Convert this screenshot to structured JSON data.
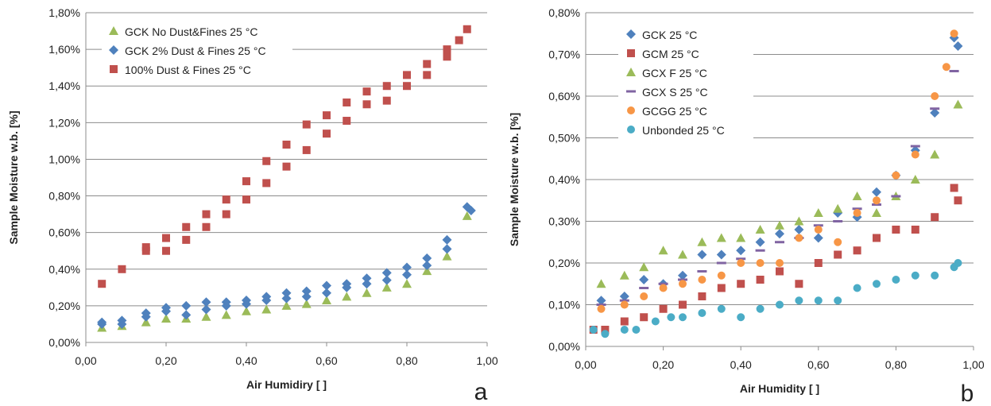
{
  "chart_data": [
    {
      "type": "scatter",
      "panel_label": "a",
      "xlabel": "Air Humidiry [ ]",
      "ylabel": "Sample Moisture w.b. [%]",
      "xlim": [
        0,
        1
      ],
      "ylim": [
        0,
        1.8
      ],
      "x_ticks": [
        "0,00",
        "0,20",
        "0,40",
        "0,60",
        "0,80",
        "1,00"
      ],
      "y_ticks": [
        "0,00%",
        "0,20%",
        "0,40%",
        "0,60%",
        "0,80%",
        "1,00%",
        "1,20%",
        "1,40%",
        "1,60%",
        "1,80%"
      ],
      "grid": "horizontal",
      "legend": "top-left",
      "series": [
        {
          "name": "GCK No Dust&Fines 25 °C",
          "marker": "triangle",
          "color": "#9bbb59",
          "x": [
            0.04,
            0.09,
            0.15,
            0.2,
            0.25,
            0.3,
            0.35,
            0.4,
            0.45,
            0.5,
            0.55,
            0.6,
            0.65,
            0.7,
            0.75,
            0.8,
            0.85,
            0.9,
            0.95
          ],
          "y": [
            0.08,
            0.09,
            0.11,
            0.13,
            0.13,
            0.14,
            0.15,
            0.17,
            0.18,
            0.2,
            0.21,
            0.23,
            0.25,
            0.27,
            0.3,
            0.32,
            0.39,
            0.47,
            0.69
          ]
        },
        {
          "name": "GCK 2% Dust & Fines 25 °C",
          "marker": "diamond",
          "color": "#4f81bd",
          "x": [
            0.04,
            0.04,
            0.09,
            0.09,
            0.15,
            0.15,
            0.2,
            0.2,
            0.25,
            0.25,
            0.3,
            0.3,
            0.35,
            0.35,
            0.4,
            0.4,
            0.45,
            0.45,
            0.5,
            0.5,
            0.55,
            0.55,
            0.6,
            0.6,
            0.65,
            0.65,
            0.7,
            0.7,
            0.75,
            0.75,
            0.8,
            0.8,
            0.85,
            0.85,
            0.9,
            0.9,
            0.95,
            0.96
          ],
          "y": [
            0.1,
            0.11,
            0.1,
            0.12,
            0.14,
            0.16,
            0.17,
            0.19,
            0.15,
            0.2,
            0.18,
            0.22,
            0.2,
            0.22,
            0.21,
            0.23,
            0.23,
            0.25,
            0.24,
            0.27,
            0.25,
            0.28,
            0.27,
            0.31,
            0.3,
            0.32,
            0.32,
            0.35,
            0.34,
            0.38,
            0.37,
            0.41,
            0.42,
            0.46,
            0.51,
            0.56,
            0.74,
            0.72
          ]
        },
        {
          "name": "100% Dust & Fines 25 °C",
          "marker": "square",
          "color": "#c0504d",
          "x": [
            0.04,
            0.09,
            0.15,
            0.15,
            0.2,
            0.2,
            0.25,
            0.25,
            0.3,
            0.3,
            0.35,
            0.35,
            0.4,
            0.4,
            0.45,
            0.45,
            0.5,
            0.5,
            0.55,
            0.55,
            0.6,
            0.6,
            0.65,
            0.65,
            0.7,
            0.7,
            0.75,
            0.75,
            0.8,
            0.8,
            0.85,
            0.85,
            0.9,
            0.9,
            0.93,
            0.95
          ],
          "y": [
            0.32,
            0.4,
            0.5,
            0.52,
            0.5,
            0.57,
            0.56,
            0.63,
            0.63,
            0.7,
            0.7,
            0.78,
            0.78,
            0.88,
            0.87,
            0.99,
            0.96,
            1.08,
            1.05,
            1.19,
            1.14,
            1.24,
            1.21,
            1.31,
            1.3,
            1.37,
            1.32,
            1.4,
            1.4,
            1.46,
            1.46,
            1.52,
            1.56,
            1.6,
            1.65,
            1.71
          ]
        }
      ]
    },
    {
      "type": "scatter",
      "panel_label": "b",
      "xlabel": "Air Humidity [ ]",
      "ylabel": "Sample Moisture w.b. [%]",
      "xlim": [
        0,
        1
      ],
      "ylim": [
        0,
        0.8
      ],
      "x_ticks": [
        "0,00",
        "0,20",
        "0,40",
        "0,60",
        "0,80",
        "1,00"
      ],
      "y_ticks": [
        "0,00%",
        "0,10%",
        "0,20%",
        "0,30%",
        "0,40%",
        "0,50%",
        "0,60%",
        "0,70%",
        "0,80%"
      ],
      "grid": "horizontal",
      "legend": "top-left",
      "series": [
        {
          "name": "GCK 25 °C",
          "marker": "diamond",
          "color": "#4f81bd",
          "x": [
            0.04,
            0.1,
            0.15,
            0.2,
            0.25,
            0.3,
            0.35,
            0.4,
            0.45,
            0.5,
            0.55,
            0.6,
            0.65,
            0.7,
            0.75,
            0.8,
            0.85,
            0.9,
            0.95,
            0.96
          ],
          "y": [
            0.11,
            0.12,
            0.16,
            0.15,
            0.17,
            0.22,
            0.22,
            0.23,
            0.25,
            0.27,
            0.28,
            0.26,
            0.32,
            0.31,
            0.37,
            0.41,
            0.47,
            0.56,
            0.74,
            0.72
          ]
        },
        {
          "name": "GCM  25 °C",
          "marker": "square",
          "color": "#c0504d",
          "x": [
            0.02,
            0.05,
            0.1,
            0.15,
            0.2,
            0.25,
            0.3,
            0.35,
            0.4,
            0.45,
            0.5,
            0.55,
            0.6,
            0.65,
            0.7,
            0.75,
            0.8,
            0.85,
            0.9,
            0.95,
            0.96
          ],
          "y": [
            0.04,
            0.04,
            0.06,
            0.07,
            0.09,
            0.1,
            0.12,
            0.14,
            0.15,
            0.16,
            0.18,
            0.15,
            0.2,
            0.22,
            0.23,
            0.26,
            0.28,
            0.28,
            0.31,
            0.38,
            0.35
          ]
        },
        {
          "name": "GCX F 25 °C",
          "marker": "triangle",
          "color": "#9bbb59",
          "x": [
            0.04,
            0.1,
            0.15,
            0.2,
            0.25,
            0.3,
            0.35,
            0.4,
            0.45,
            0.5,
            0.55,
            0.6,
            0.65,
            0.7,
            0.75,
            0.8,
            0.85,
            0.9,
            0.96
          ],
          "y": [
            0.15,
            0.17,
            0.19,
            0.23,
            0.22,
            0.25,
            0.26,
            0.26,
            0.28,
            0.29,
            0.3,
            0.32,
            0.33,
            0.36,
            0.32,
            0.36,
            0.4,
            0.46,
            0.58
          ]
        },
        {
          "name": "GCX S 25 °C",
          "marker": "dash",
          "color": "#8064a2",
          "x": [
            0.04,
            0.1,
            0.15,
            0.2,
            0.25,
            0.3,
            0.35,
            0.4,
            0.45,
            0.5,
            0.55,
            0.6,
            0.65,
            0.7,
            0.75,
            0.8,
            0.85,
            0.9,
            0.95
          ],
          "y": [
            0.1,
            0.11,
            0.14,
            0.15,
            0.16,
            0.18,
            0.2,
            0.21,
            0.23,
            0.25,
            0.26,
            0.29,
            0.3,
            0.33,
            0.34,
            0.36,
            0.48,
            0.57,
            0.66
          ]
        },
        {
          "name": "GCGG 25 °C",
          "marker": "circle",
          "color": "#f79646",
          "x": [
            0.04,
            0.1,
            0.15,
            0.2,
            0.25,
            0.3,
            0.35,
            0.4,
            0.45,
            0.5,
            0.55,
            0.6,
            0.65,
            0.7,
            0.75,
            0.8,
            0.85,
            0.9,
            0.93,
            0.95
          ],
          "y": [
            0.09,
            0.1,
            0.12,
            0.14,
            0.15,
            0.16,
            0.17,
            0.2,
            0.2,
            0.2,
            0.26,
            0.28,
            0.25,
            0.32,
            0.35,
            0.41,
            0.46,
            0.6,
            0.67,
            0.75
          ]
        },
        {
          "name": "Unbonded 25 °C",
          "marker": "circle",
          "color": "#4bacc6",
          "x": [
            0.02,
            0.05,
            0.1,
            0.13,
            0.18,
            0.22,
            0.25,
            0.3,
            0.35,
            0.4,
            0.45,
            0.5,
            0.55,
            0.6,
            0.65,
            0.7,
            0.75,
            0.8,
            0.85,
            0.9,
            0.95,
            0.96
          ],
          "y": [
            0.04,
            0.03,
            0.04,
            0.04,
            0.06,
            0.07,
            0.07,
            0.08,
            0.09,
            0.07,
            0.09,
            0.1,
            0.11,
            0.11,
            0.11,
            0.14,
            0.15,
            0.16,
            0.17,
            0.17,
            0.19,
            0.2
          ]
        }
      ]
    }
  ]
}
